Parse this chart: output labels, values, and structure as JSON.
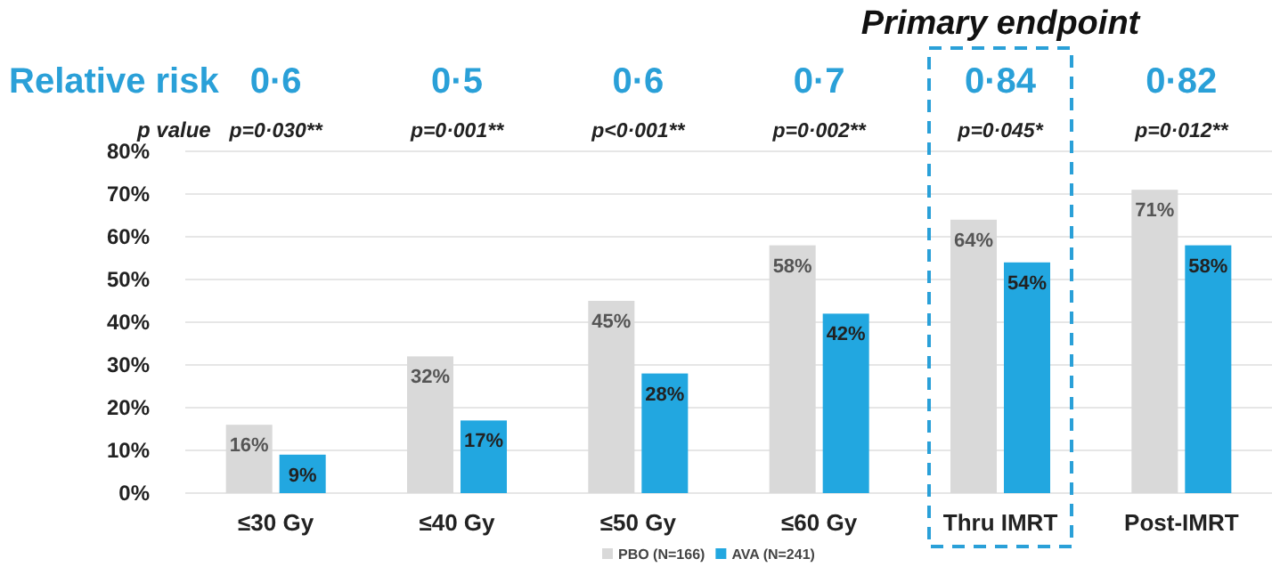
{
  "chart_data": {
    "type": "bar",
    "categories": [
      "≤30 Gy",
      "≤40 Gy",
      "≤50 Gy",
      "≤60 Gy",
      "Thru IMRT",
      "Post-IMRT"
    ],
    "series": [
      {
        "name": "PBO (N=166)",
        "color": "#d9d9d9",
        "values": [
          16,
          32,
          45,
          58,
          64,
          71
        ],
        "value_labels": [
          "16%",
          "32%",
          "45%",
          "58%",
          "64%",
          "71%"
        ]
      },
      {
        "name": "AVA (N=241)",
        "color": "#22a7e0",
        "values": [
          9,
          17,
          28,
          42,
          54,
          58
        ],
        "value_labels": [
          "9%",
          "17%",
          "28%",
          "42%",
          "54%",
          "58%"
        ]
      }
    ],
    "ylim": [
      0,
      80
    ],
    "yticks": [
      {
        "value": 0,
        "label": "0%"
      },
      {
        "value": 10,
        "label": "10%"
      },
      {
        "value": 20,
        "label": "20%"
      },
      {
        "value": 30,
        "label": "30%"
      },
      {
        "value": 40,
        "label": "40%"
      },
      {
        "value": 50,
        "label": "50%"
      },
      {
        "value": 60,
        "label": "60%"
      },
      {
        "value": 70,
        "label": "70%"
      },
      {
        "value": 80,
        "label": "80%"
      }
    ],
    "grid": "y",
    "legend": "bottom",
    "annotations": [
      "Relative risk",
      "p value",
      "Primary endpoint",
      "0·6",
      "0·5",
      "0·6",
      "0·7",
      "0·84",
      "0·82",
      "p=0·030**",
      "p=0·001**",
      "p<0·001**",
      "p=0·002**",
      "p=0·045*",
      "p=0·012**"
    ]
  }
}
